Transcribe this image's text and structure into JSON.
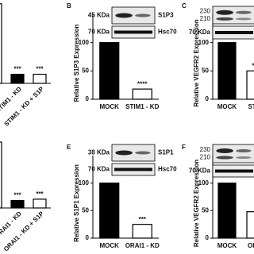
{
  "chart_data": [
    {
      "type": "bar",
      "categories": [
        "P",
        "STIM1 - KD",
        "STIM1 - KD + S1P"
      ],
      "values": [
        105,
        12,
        12
      ],
      "colors": [
        "#ffffff",
        "#000000",
        "#ffffff"
      ],
      "annotations": [
        "***",
        "***",
        "***"
      ],
      "ylim": [
        0,
        110
      ]
    },
    {
      "type": "bar",
      "panel_label": "B",
      "ylabel": "Relative S1P3 Expression",
      "blot_left": [
        "45 KDa",
        "70 KDa"
      ],
      "blot_right": [
        "S1P3",
        "Hsc70"
      ],
      "categories": [
        "MOCK",
        "STIM1 - KD"
      ],
      "values": [
        100,
        18
      ],
      "colors": [
        "#000000",
        "#ffffff"
      ],
      "annotations": [
        null,
        "****"
      ],
      "ylim": [
        0,
        150
      ],
      "yticks": [
        0,
        50,
        100
      ]
    },
    {
      "type": "bar",
      "panel_label": "C",
      "ylabel": "Relative VEGFR2 Expression",
      "blot_left": [
        "230",
        "210",
        "70 KDa"
      ],
      "categories": [
        "MOCK",
        "STIM"
      ],
      "values": [
        100,
        50
      ],
      "colors": [
        "#000000",
        "#ffffff"
      ],
      "annotations": [
        null,
        "***"
      ],
      "ylim": [
        0,
        150
      ],
      "yticks": [
        0,
        50,
        100
      ]
    },
    {
      "type": "bar",
      "categories": [
        "R",
        "ORAI1 - KD",
        "ORAI1 - KD + S1P"
      ],
      "values": [
        105,
        12,
        14
      ],
      "colors": [
        "#ffffff",
        "#000000",
        "#ffffff"
      ],
      "annotations": [
        "***",
        "***",
        "***"
      ],
      "ylim": [
        0,
        110
      ]
    },
    {
      "type": "bar",
      "panel_label": "E",
      "ylabel": "Relative S1P1 Expression",
      "blot_left": [
        "38 KDa",
        "70 KDa"
      ],
      "blot_right": [
        "S1P1",
        "Hsc70"
      ],
      "categories": [
        "MOCK",
        "ORAI1 - KD"
      ],
      "values": [
        100,
        25
      ],
      "colors": [
        "#000000",
        "#ffffff"
      ],
      "annotations": [
        null,
        "***"
      ],
      "ylim": [
        0,
        150
      ],
      "yticks": [
        0,
        50,
        100
      ]
    },
    {
      "type": "bar",
      "panel_label": "F",
      "ylabel": "Relative VEGFR2 Expression",
      "blot_left": [
        "230",
        "210",
        "70 KDa"
      ],
      "categories": [
        "MOCK",
        "ORAI"
      ],
      "values": [
        100,
        48
      ],
      "colors": [
        "#000000",
        "#ffffff"
      ],
      "annotations": [
        null,
        "*"
      ],
      "ylim": [
        0,
        150
      ],
      "yticks": [
        0,
        50,
        100
      ]
    }
  ]
}
